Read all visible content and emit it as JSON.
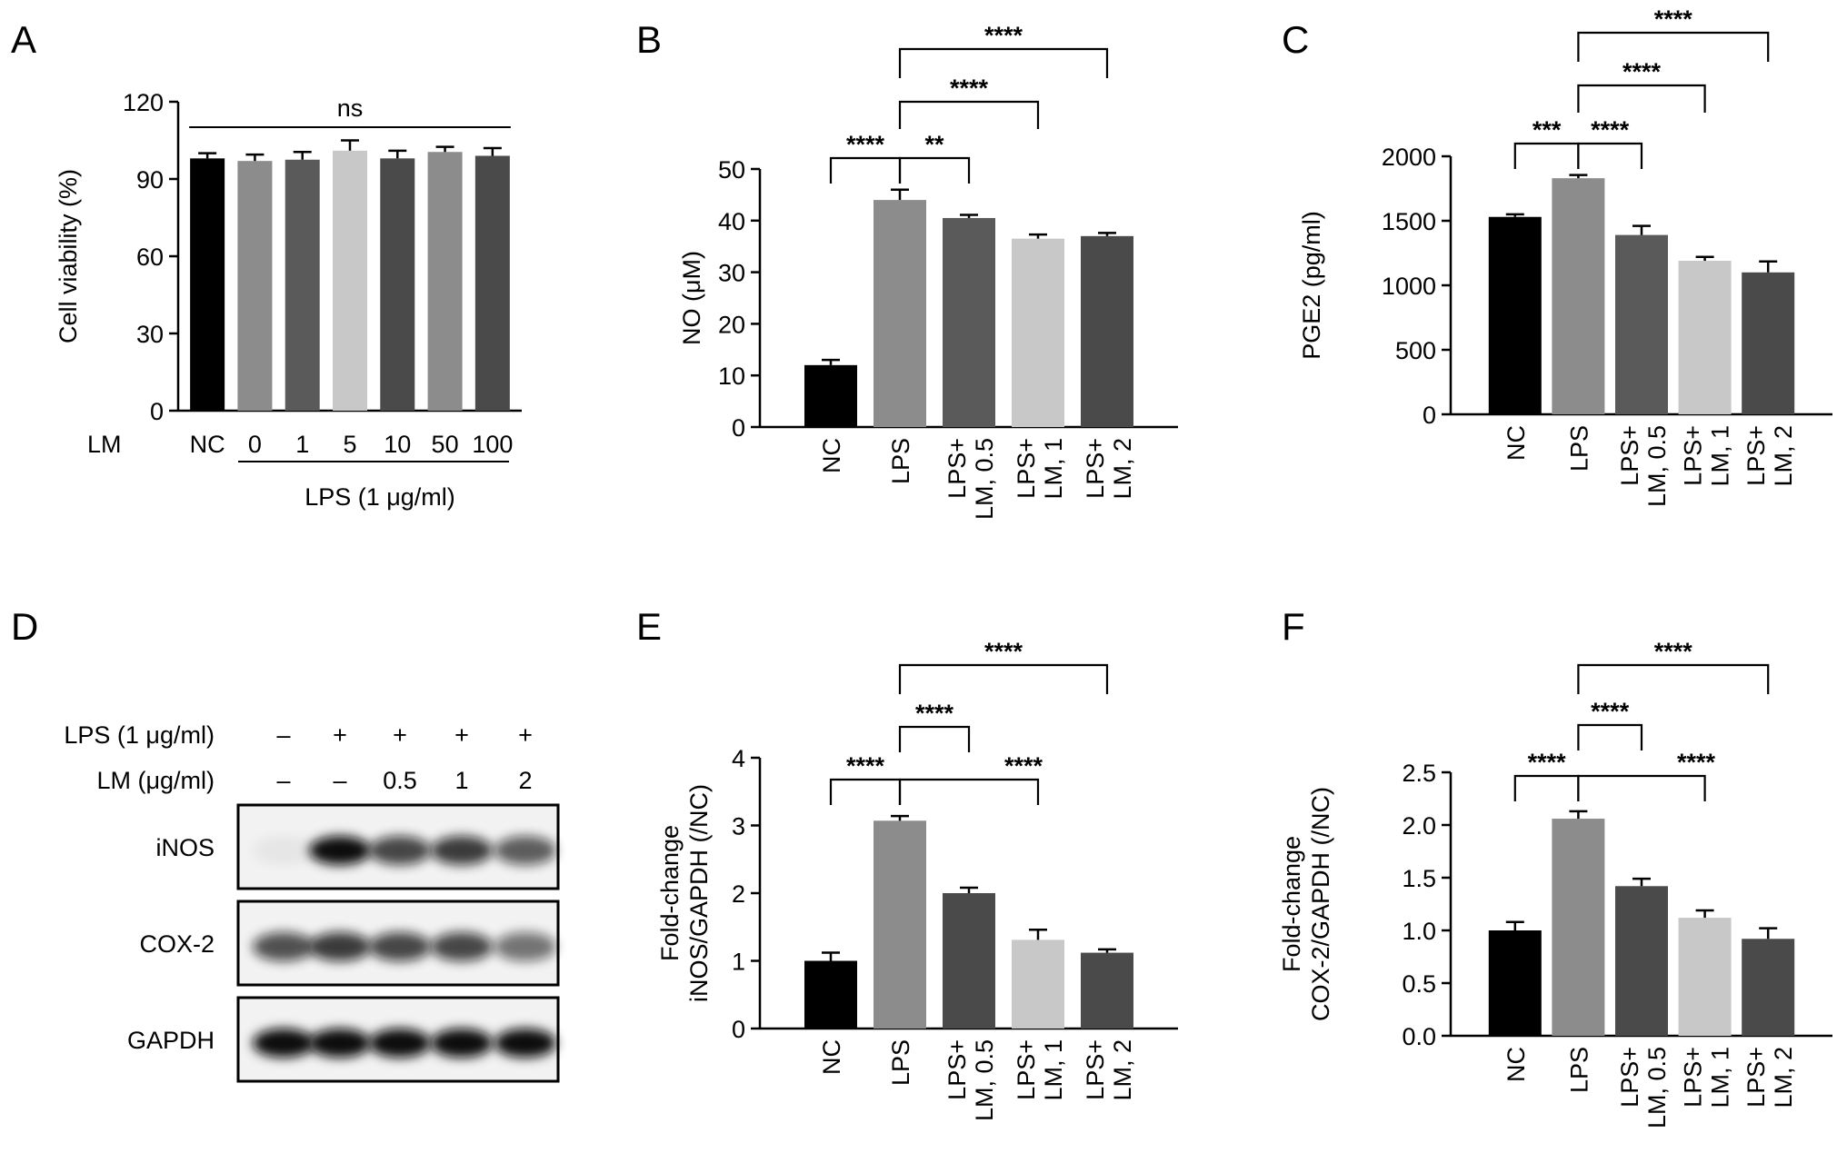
{
  "panel_letters": {
    "A": "A",
    "B": "B",
    "C": "C",
    "D": "D",
    "E": "E",
    "F": "F"
  },
  "colors": {
    "black": "#000000",
    "gray_mid": "#8c8c8c",
    "gray_dark": "#5a5a5a",
    "gray_light": "#c8c8c8",
    "gray_charcoal": "#4a4a4a",
    "blot_band": "#111111"
  },
  "panel_a": {
    "lm_label": "LM",
    "lps_label": "LPS (1 μg/ml)",
    "ns_label": "ns"
  },
  "panel_d": {
    "row_labels": [
      "LPS (1 μg/ml)",
      "LM (μg/ml)"
    ],
    "lps_marks": [
      "–",
      "+",
      "+",
      "+",
      "+"
    ],
    "lm_marks": [
      "–",
      "–",
      "0.5",
      "1",
      "2"
    ],
    "blots": [
      {
        "name": "iNOS",
        "intensity": [
          0.05,
          1.0,
          0.75,
          0.8,
          0.65
        ]
      },
      {
        "name": "COX-2",
        "intensity": [
          0.7,
          0.8,
          0.75,
          0.75,
          0.55
        ]
      },
      {
        "name": "GAPDH",
        "intensity": [
          1.0,
          1.0,
          1.0,
          1.0,
          1.0
        ]
      }
    ]
  },
  "chart_data": [
    {
      "id": "A",
      "type": "bar",
      "ylabel": "Cell viability (%)",
      "categories": [
        "NC",
        "0",
        "1",
        "5",
        "10",
        "50",
        "100"
      ],
      "values": [
        98,
        97,
        97.5,
        101,
        98,
        100.5,
        99
      ],
      "errors": [
        2,
        2.5,
        3,
        4,
        3,
        2,
        3
      ],
      "colors": [
        "#000000",
        "#8c8c8c",
        "#5a5a5a",
        "#c8c8c8",
        "#4a4a4a",
        "#8c8c8c",
        "#4a4a4a"
      ],
      "ylim": [
        0,
        120
      ],
      "yticks": [
        0,
        30,
        60,
        90,
        120
      ],
      "annotations": [
        {
          "text": "ns",
          "from": 0,
          "to": 6
        }
      ]
    },
    {
      "id": "B",
      "type": "bar",
      "ylabel": "NO (μM)",
      "categories": [
        "NC",
        "LPS",
        "LPS+ LM, 0.5",
        "LPS+ LM, 1",
        "LPS+ LM, 2"
      ],
      "values": [
        12,
        44,
        40.5,
        36.5,
        37
      ],
      "errors": [
        1,
        2,
        0.6,
        0.8,
        0.6
      ],
      "colors": [
        "#000000",
        "#8c8c8c",
        "#5a5a5a",
        "#c8c8c8",
        "#4a4a4a"
      ],
      "ylim": [
        0,
        50
      ],
      "yticks": [
        0,
        10,
        20,
        30,
        40,
        50
      ],
      "comparisons": [
        {
          "from": 0,
          "to": 1,
          "label": "****"
        },
        {
          "from": 1,
          "to": 2,
          "label": "**"
        },
        {
          "from": 1,
          "to": 3,
          "label": "****"
        },
        {
          "from": 1,
          "to": 4,
          "label": "****"
        }
      ]
    },
    {
      "id": "C",
      "type": "bar",
      "ylabel": "PGE2 (pg/ml)",
      "categories": [
        "NC",
        "LPS",
        "LPS+ LM, 0.5",
        "LPS+ LM, 1",
        "LPS+ LM, 2"
      ],
      "values": [
        1530,
        1830,
        1390,
        1190,
        1100
      ],
      "errors": [
        20,
        25,
        70,
        30,
        85
      ],
      "colors": [
        "#000000",
        "#8c8c8c",
        "#5a5a5a",
        "#c8c8c8",
        "#4a4a4a"
      ],
      "ylim": [
        0,
        2000
      ],
      "yticks": [
        0,
        500,
        1000,
        1500,
        2000
      ],
      "comparisons": [
        {
          "from": 0,
          "to": 1,
          "label": "***"
        },
        {
          "from": 1,
          "to": 2,
          "label": "****"
        },
        {
          "from": 1,
          "to": 3,
          "label": "****"
        },
        {
          "from": 1,
          "to": 4,
          "label": "****"
        }
      ]
    },
    {
      "id": "E",
      "type": "bar",
      "ylabel": "Fold-change iNOS/GAPDH (/NC)",
      "categories": [
        "NC",
        "LPS",
        "LPS+ LM, 0.5",
        "LPS+ LM, 1",
        "LPS+ LM, 2"
      ],
      "values": [
        1.0,
        3.07,
        2.0,
        1.31,
        1.12
      ],
      "errors": [
        0.12,
        0.07,
        0.08,
        0.15,
        0.05
      ],
      "colors": [
        "#000000",
        "#8c8c8c",
        "#4a4a4a",
        "#c8c8c8",
        "#4a4a4a"
      ],
      "ylim": [
        0,
        4
      ],
      "yticks": [
        0,
        1,
        2,
        3,
        4
      ],
      "comparisons": [
        {
          "from": 0,
          "to": 1,
          "label": "****"
        },
        {
          "from": 1,
          "to": 2,
          "label": "****"
        },
        {
          "from": 1,
          "to": 3,
          "label": "****"
        },
        {
          "from": 1,
          "to": 4,
          "label": "****"
        }
      ]
    },
    {
      "id": "F",
      "type": "bar",
      "ylabel": "Fold-change COX-2/GAPDH (/NC)",
      "categories": [
        "NC",
        "LPS",
        "LPS+ LM, 0.5",
        "LPS+ LM, 1",
        "LPS+ LM, 2"
      ],
      "values": [
        1.0,
        2.06,
        1.42,
        1.12,
        0.92
      ],
      "errors": [
        0.08,
        0.07,
        0.07,
        0.07,
        0.1
      ],
      "colors": [
        "#000000",
        "#8c8c8c",
        "#4a4a4a",
        "#c8c8c8",
        "#4a4a4a"
      ],
      "ylim": [
        0,
        2.5
      ],
      "yticks": [
        "0.0",
        "0.5",
        "1.0",
        "1.5",
        "2.0",
        "2.5"
      ],
      "comparisons": [
        {
          "from": 0,
          "to": 1,
          "label": "****"
        },
        {
          "from": 1,
          "to": 2,
          "label": "****"
        },
        {
          "from": 1,
          "to": 3,
          "label": "****"
        },
        {
          "from": 1,
          "to": 4,
          "label": "****"
        }
      ]
    }
  ]
}
